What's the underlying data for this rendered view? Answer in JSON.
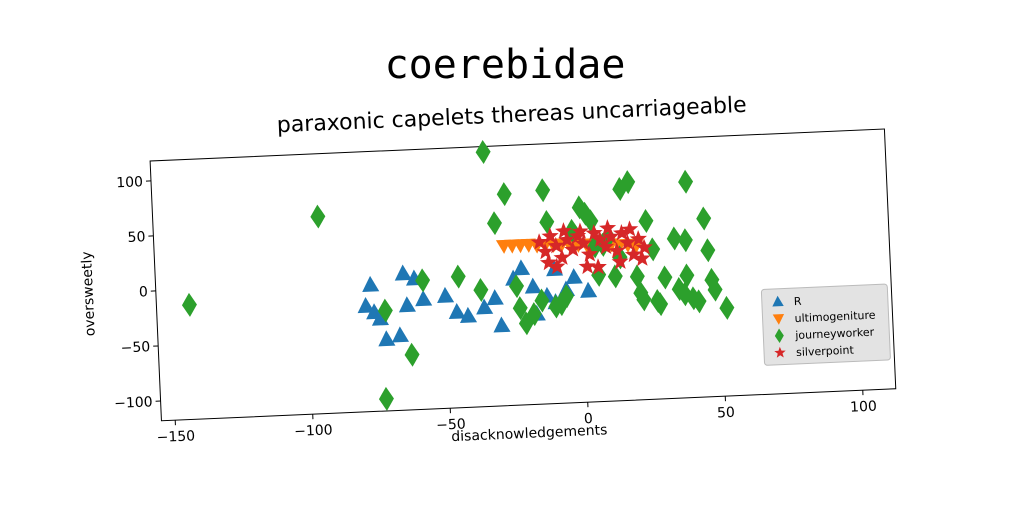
{
  "chart_data": {
    "type": "scatter",
    "title": "coerebidae",
    "subtitle": "paraxonic capelets thereas uncarriageable",
    "xlabel": "disacknowledgements",
    "ylabel": "oversweetly",
    "xlim": [
      -155,
      112
    ],
    "ylim": [
      -118,
      118
    ],
    "xticks": [
      -150,
      -100,
      -50,
      0,
      50,
      100
    ],
    "yticks": [
      -100,
      -50,
      0,
      50,
      100
    ],
    "xtick_labels": [
      "−150",
      "−100",
      "−50",
      "0",
      "50",
      "100"
    ],
    "ytick_labels": [
      "−100",
      "−50",
      "0",
      "50",
      "100"
    ],
    "legend_position": "lower-right",
    "grid": false,
    "series": [
      {
        "name": "R",
        "marker": "triangle-up",
        "color": "#1f77b4",
        "points": [
          [
            -77,
            -3
          ],
          [
            -79,
            -22
          ],
          [
            -76,
            -28
          ],
          [
            -74,
            -34
          ],
          [
            -72,
            -53
          ],
          [
            -67,
            -50
          ],
          [
            -64,
            -23
          ],
          [
            -65,
            6
          ],
          [
            -61,
            1
          ],
          [
            -58,
            -18
          ],
          [
            -50,
            -16
          ],
          [
            -46,
            -31
          ],
          [
            -42,
            -35
          ],
          [
            -36,
            -28
          ],
          [
            -32,
            -20
          ],
          [
            -30,
            -45
          ],
          [
            -25,
            -3
          ],
          [
            -22,
            6
          ],
          [
            -18,
            -11
          ],
          [
            -17,
            -36
          ],
          [
            -13,
            -20
          ],
          [
            -10,
            -26
          ],
          [
            -6,
            -15
          ],
          [
            -3,
            -4
          ],
          [
            -10,
            4
          ],
          [
            2,
            -17
          ]
        ]
      },
      {
        "name": "ultimogeniture",
        "marker": "triangle-down",
        "color": "#ff7f0e",
        "points": [
          [
            -28,
            27
          ],
          [
            -25,
            27
          ],
          [
            -22,
            27
          ],
          [
            -19,
            27
          ],
          [
            -16,
            26
          ],
          [
            -13,
            26
          ],
          [
            -10,
            26
          ],
          [
            -7,
            26
          ],
          [
            -4,
            25
          ],
          [
            -1,
            25
          ],
          [
            2,
            25
          ],
          [
            5,
            24
          ],
          [
            8,
            24
          ],
          [
            11,
            24
          ],
          [
            14,
            23
          ],
          [
            17,
            23
          ],
          [
            20,
            22
          ]
        ]
      },
      {
        "name": "journeyworker",
        "marker": "diamond",
        "color": "#2ca02c",
        "points": [
          [
            -143,
            -14
          ],
          [
            -95,
            61
          ],
          [
            -73,
            -107
          ],
          [
            -72,
            -27
          ],
          [
            -63,
            -68
          ],
          [
            -58,
            -1
          ],
          [
            -45,
            1
          ],
          [
            -37,
            -12
          ],
          [
            -34,
            113
          ],
          [
            -31,
            48
          ],
          [
            -27,
            74
          ],
          [
            -24,
            -10
          ],
          [
            -23,
            -30
          ],
          [
            -21,
            -44
          ],
          [
            -18,
            -36
          ],
          [
            -15,
            -24
          ],
          [
            -13,
            76
          ],
          [
            -12,
            47
          ],
          [
            -10,
            -30
          ],
          [
            -8,
            -28
          ],
          [
            -6,
            -21
          ],
          [
            -3,
            38
          ],
          [
            0,
            59
          ],
          [
            2,
            53
          ],
          [
            4,
            46
          ],
          [
            5,
            23
          ],
          [
            6,
            -3
          ],
          [
            8,
            24
          ],
          [
            10,
            31
          ],
          [
            12,
            -5
          ],
          [
            14,
            12
          ],
          [
            15,
            74
          ],
          [
            18,
            80
          ],
          [
            20,
            -6
          ],
          [
            21,
            -21
          ],
          [
            22,
            -27
          ],
          [
            24,
            44
          ],
          [
            26,
            18
          ],
          [
            27,
            -29
          ],
          [
            28,
            -32
          ],
          [
            30,
            -8
          ],
          [
            34,
            27
          ],
          [
            35,
            -19
          ],
          [
            37,
            -24
          ],
          [
            38,
            25
          ],
          [
            40,
            -28
          ],
          [
            42,
            -31
          ],
          [
            45,
            44
          ],
          [
            46,
            15
          ],
          [
            47,
            -12
          ],
          [
            48,
            -21
          ],
          [
            52,
            -38
          ],
          [
            39,
            78
          ],
          [
            38,
            -7
          ]
        ]
      },
      {
        "name": "silverpoint",
        "marker": "star",
        "color": "#d62728",
        "points": [
          [
            -15,
            29
          ],
          [
            -13,
            20
          ],
          [
            -11,
            34
          ],
          [
            -9,
            25
          ],
          [
            -7,
            14
          ],
          [
            -5,
            30
          ],
          [
            -3,
            21
          ],
          [
            -1,
            33
          ],
          [
            1,
            26
          ],
          [
            3,
            16
          ],
          [
            5,
            35
          ],
          [
            7,
            29
          ],
          [
            9,
            22
          ],
          [
            11,
            31
          ],
          [
            13,
            18
          ],
          [
            15,
            34
          ],
          [
            17,
            25
          ],
          [
            19,
            14
          ],
          [
            21,
            28
          ],
          [
            23,
            20
          ],
          [
            -12,
            10
          ],
          [
            6,
            4
          ],
          [
            14,
            8
          ],
          [
            0,
            37
          ],
          [
            -6,
            38
          ],
          [
            10,
            39
          ],
          [
            18,
            37
          ],
          [
            2,
            5
          ],
          [
            22,
            10
          ],
          [
            -9,
            6
          ]
        ]
      }
    ]
  }
}
